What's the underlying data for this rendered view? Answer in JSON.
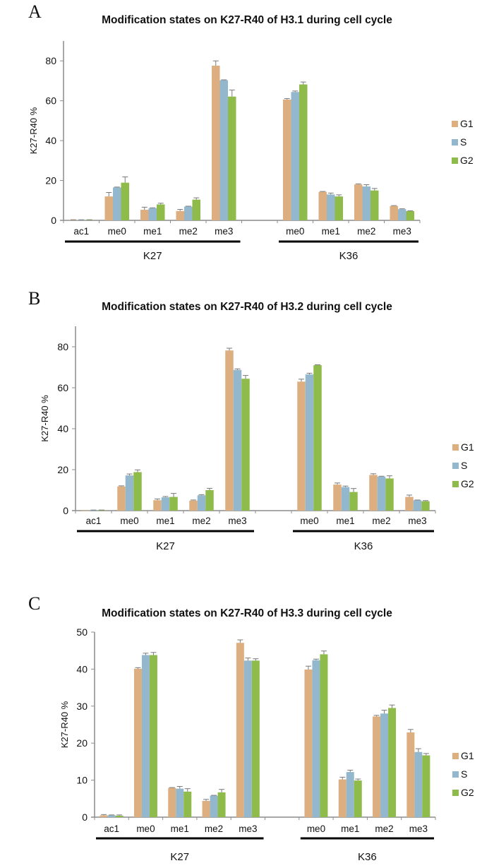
{
  "figure": {
    "legend_colors": {
      "G1": "#DDAF80",
      "S": "#93B8CD",
      "G2": "#8FBB4B"
    }
  },
  "chart_data": [
    {
      "panel_label": "A",
      "type": "bar",
      "title": "Modification states on K27-R40 of H3.1 during cell cycle",
      "ylabel": "K27-R40 %",
      "xlabel": "",
      "ylim": [
        0,
        90
      ],
      "yticks": [
        0,
        20,
        40,
        60,
        80
      ],
      "grid": false,
      "legend": {
        "position": "right",
        "entries": [
          "G1",
          "S",
          "G2"
        ]
      },
      "groups": [
        {
          "name": "K27",
          "categories": [
            "ac1",
            "me0",
            "me1",
            "me2",
            "me3"
          ]
        },
        {
          "name": "K36",
          "categories": [
            "me0",
            "me1",
            "me2",
            "me3"
          ]
        }
      ],
      "categories": [
        "ac1",
        "me0",
        "me1",
        "me2",
        "me3",
        "",
        "me0",
        "me1",
        "me2",
        "me3"
      ],
      "series": [
        {
          "name": "G1",
          "values": [
            0.2,
            12.0,
            5.3,
            4.7,
            77.6,
            null,
            60.6,
            14.3,
            18.0,
            7.2
          ],
          "errors": [
            0.1,
            2.0,
            1.3,
            0.8,
            2.4,
            null,
            0.5,
            0.2,
            0.3,
            0.2
          ]
        },
        {
          "name": "S",
          "values": [
            0.2,
            16.5,
            6.1,
            6.9,
            70.3,
            null,
            64.4,
            13.0,
            17.0,
            5.6
          ],
          "errors": [
            0.1,
            0.2,
            0.2,
            0.2,
            0.2,
            null,
            0.5,
            0.7,
            0.9,
            0.2
          ]
        },
        {
          "name": "G2",
          "values": [
            0.2,
            18.9,
            8.0,
            10.4,
            62.1,
            null,
            68.2,
            12.0,
            15.0,
            4.6
          ],
          "errors": [
            0.1,
            2.9,
            0.6,
            0.9,
            3.3,
            null,
            1.2,
            0.8,
            1.0,
            0.2
          ]
        }
      ]
    },
    {
      "panel_label": "B",
      "type": "bar",
      "title": "Modification states on K27-R40 of H3.2 during cell cycle",
      "ylabel": "K27-R40 %",
      "xlabel": "",
      "ylim": [
        0,
        90
      ],
      "yticks": [
        0,
        20,
        40,
        60,
        80
      ],
      "grid": false,
      "legend": {
        "position": "right",
        "entries": [
          "G1",
          "S",
          "G2"
        ]
      },
      "groups": [
        {
          "name": "K27",
          "categories": [
            "ac1",
            "me0",
            "me1",
            "me2",
            "me3"
          ]
        },
        {
          "name": "K36",
          "categories": [
            "me0",
            "me1",
            "me2",
            "me3"
          ]
        }
      ],
      "categories": [
        "ac1",
        "me0",
        "me1",
        "me2",
        "me3",
        "",
        "me0",
        "me1",
        "me2",
        "me3"
      ],
      "series": [
        {
          "name": "G1",
          "values": [
            0.0,
            11.8,
            5.1,
            4.9,
            78.2,
            null,
            63.0,
            12.7,
            17.4,
            6.7
          ],
          "errors": [
            0.0,
            0.3,
            0.6,
            0.3,
            1.1,
            null,
            1.2,
            0.8,
            0.6,
            0.9
          ]
        },
        {
          "name": "S",
          "values": [
            0.2,
            17.2,
            6.5,
            7.5,
            68.7,
            null,
            66.5,
            11.5,
            16.6,
            5.1
          ],
          "errors": [
            0.1,
            0.7,
            0.4,
            0.3,
            0.5,
            null,
            0.6,
            0.5,
            0.2,
            0.1
          ]
        },
        {
          "name": "G2",
          "values": [
            0.2,
            18.8,
            6.7,
            10.0,
            64.4,
            null,
            71.0,
            9.1,
            15.7,
            4.6
          ],
          "errors": [
            0.1,
            1.1,
            1.7,
            0.9,
            1.6,
            null,
            0.2,
            1.7,
            1.3,
            0.3
          ]
        }
      ]
    },
    {
      "panel_label": "C",
      "type": "bar",
      "title": "Modification states on K27-R40 of H3.3 during cell cycle",
      "ylabel": "K27-R40 %",
      "xlabel": "",
      "ylim": [
        0,
        50
      ],
      "yticks": [
        0,
        10,
        20,
        30,
        40,
        50
      ],
      "grid": false,
      "legend": {
        "position": "right",
        "entries": [
          "G1",
          "S",
          "G2"
        ]
      },
      "groups": [
        {
          "name": "K27",
          "categories": [
            "ac1",
            "me0",
            "me1",
            "me2",
            "me3"
          ]
        },
        {
          "name": "K36",
          "categories": [
            "me0",
            "me1",
            "me2",
            "me3"
          ]
        }
      ],
      "categories": [
        "ac1",
        "me0",
        "me1",
        "me2",
        "me3",
        "",
        "me0",
        "me1",
        "me2",
        "me3"
      ],
      "series": [
        {
          "name": "G1",
          "values": [
            0.5,
            40.1,
            7.9,
            4.4,
            47.1,
            null,
            39.9,
            10.2,
            27.2,
            22.9
          ],
          "errors": [
            0.2,
            0.3,
            0.1,
            0.4,
            0.8,
            null,
            0.9,
            0.6,
            0.3,
            0.8
          ]
        },
        {
          "name": "S",
          "values": [
            0.5,
            43.8,
            7.7,
            5.8,
            42.3,
            null,
            42.4,
            12.2,
            28.0,
            17.6
          ],
          "errors": [
            0.1,
            0.5,
            0.6,
            0.1,
            0.7,
            null,
            0.3,
            0.5,
            0.9,
            0.9
          ]
        },
        {
          "name": "G2",
          "values": [
            0.4,
            43.8,
            6.9,
            6.7,
            42.3,
            null,
            44.0,
            9.9,
            29.5,
            16.7
          ],
          "errors": [
            0.2,
            0.7,
            0.8,
            0.8,
            0.5,
            null,
            0.9,
            0.4,
            0.8,
            0.5
          ]
        }
      ]
    }
  ]
}
